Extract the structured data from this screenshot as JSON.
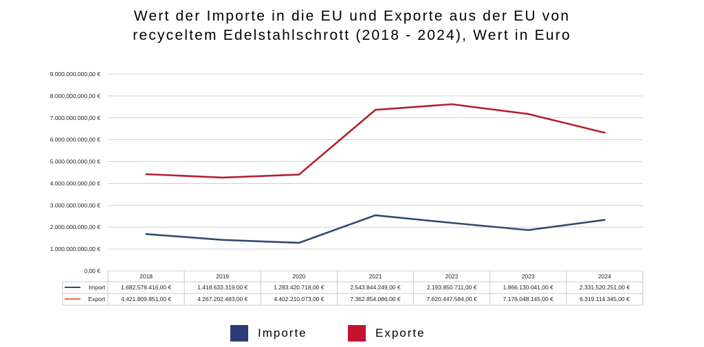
{
  "chart_data": {
    "type": "line",
    "title": "Wert der Importe in die EU und Exporte aus der EU von recyceltem Edelstahlschrott (2018 - 2024), Wert in Euro",
    "title_lines": [
      "Wert der Importe in die EU und Exporte aus der EU von",
      "recyceltem Edelstahlschrott (2018 - 2024), Wert in Euro"
    ],
    "categories": [
      "2018",
      "2019",
      "2020",
      "2021",
      "2022",
      "2023",
      "2024"
    ],
    "ylim": [
      0,
      9000000000
    ],
    "yticks": [
      0,
      1000000000,
      2000000000,
      3000000000,
      4000000000,
      5000000000,
      6000000000,
      7000000000,
      8000000000,
      9000000000
    ],
    "ytick_labels": [
      "0,00 €",
      "1.000.000.000,00 €",
      "2.000.000.000,00 €",
      "3.000.000.000,00 €",
      "4.000.000.000,00 €",
      "5.000.000.000,00 €",
      "6.000.000.000,00 €",
      "7.000.000.000,00 €",
      "8.000.000.000,00 €",
      "9.000.000.000,00 €"
    ],
    "grid": true,
    "series": [
      {
        "name": "Import",
        "color": "#2e4a6e",
        "table_marker_color": "#2e4a6e",
        "values": [
          1682578416.0,
          1418633319.0,
          1283420718.0,
          2543844249.0,
          2193850711.0,
          1866130041.0,
          2331520251.0
        ],
        "labels": [
          "1.682.578.416,00 €",
          "1.418.633.319,00 €",
          "1.283.420.718,00 €",
          "2.543.844.249,00 €",
          "2.193.850.711,00 €",
          "1.866.130.041,00 €",
          "2.331.520.251,00 €"
        ]
      },
      {
        "name": "Export",
        "color": "#b3202e",
        "table_marker_color": "#e0703a",
        "values": [
          4421809851.0,
          4267202483.0,
          4402210073.0,
          7362854086.0,
          7620447584.0,
          7176048145.0,
          6319114345.0
        ],
        "labels": [
          "4.421.809.851,00 €",
          "4.267.202.483,00 €",
          "4.402.210.073,00 €",
          "7.362.854.086,00 €",
          "7.620.447.584,00 €",
          "7.176.048.145,00 €",
          "6.319.114.345,00 €"
        ]
      }
    ],
    "legend": {
      "position": "bottom-center",
      "items": [
        {
          "label": "Importe",
          "color": "#2b3a78"
        },
        {
          "label": "Exporte",
          "color": "#c4122f"
        }
      ]
    }
  }
}
